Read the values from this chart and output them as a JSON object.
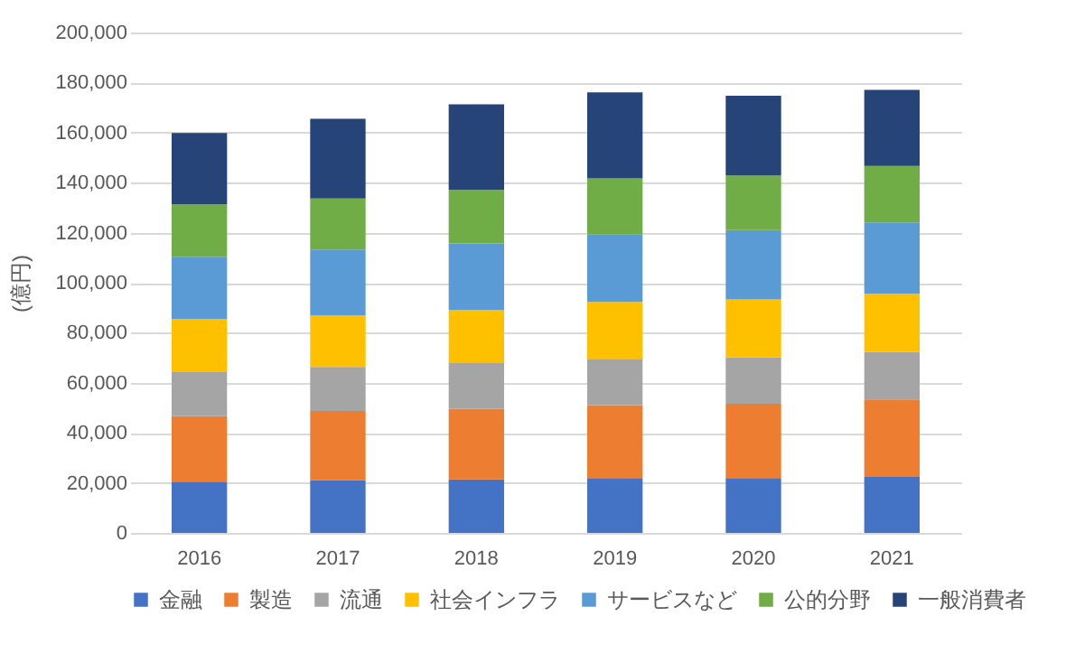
{
  "chart_data": {
    "type": "bar",
    "stacked": true,
    "ylabel": "(億円)",
    "categories": [
      "2016",
      "2017",
      "2018",
      "2019",
      "2020",
      "2021"
    ],
    "ylim": [
      0,
      200000
    ],
    "yticks": [
      {
        "value": 0,
        "label": "0"
      },
      {
        "value": 20000,
        "label": "20,000"
      },
      {
        "value": 40000,
        "label": "40,000"
      },
      {
        "value": 60000,
        "label": "60,000"
      },
      {
        "value": 80000,
        "label": "80,000"
      },
      {
        "value": 100000,
        "label": "100,000"
      },
      {
        "value": 120000,
        "label": "120,000"
      },
      {
        "value": 140000,
        "label": "140,000"
      },
      {
        "value": 160000,
        "label": "160,000"
      },
      {
        "value": 180000,
        "label": "180,000"
      },
      {
        "value": 200000,
        "label": "200,000"
      }
    ],
    "grid": "y",
    "legend": "bottom",
    "series": [
      {
        "name": "金融",
        "color": "#4472c4",
        "values": [
          20500,
          21000,
          21400,
          21900,
          21900,
          22400
        ]
      },
      {
        "name": "製造",
        "color": "#ed7d31",
        "values": [
          26200,
          27700,
          28200,
          29200,
          29700,
          30900
        ]
      },
      {
        "name": "流通",
        "color": "#a5a5a5",
        "values": [
          17600,
          17600,
          18300,
          18500,
          18500,
          19000
        ]
      },
      {
        "name": "社会インフラ",
        "color": "#ffc000",
        "values": [
          21200,
          20700,
          21300,
          22700,
          23200,
          23400
        ]
      },
      {
        "name": "サービスなど",
        "color": "#5b9bd5",
        "values": [
          24900,
          26300,
          26500,
          27000,
          27700,
          28400
        ]
      },
      {
        "name": "公的分野",
        "color": "#70ad47",
        "values": [
          20900,
          20400,
          21400,
          22400,
          21900,
          22600
        ]
      },
      {
        "name": "一般消費者",
        "color": "#264478",
        "values": [
          28500,
          31800,
          34200,
          34400,
          31800,
          30400
        ]
      }
    ]
  }
}
